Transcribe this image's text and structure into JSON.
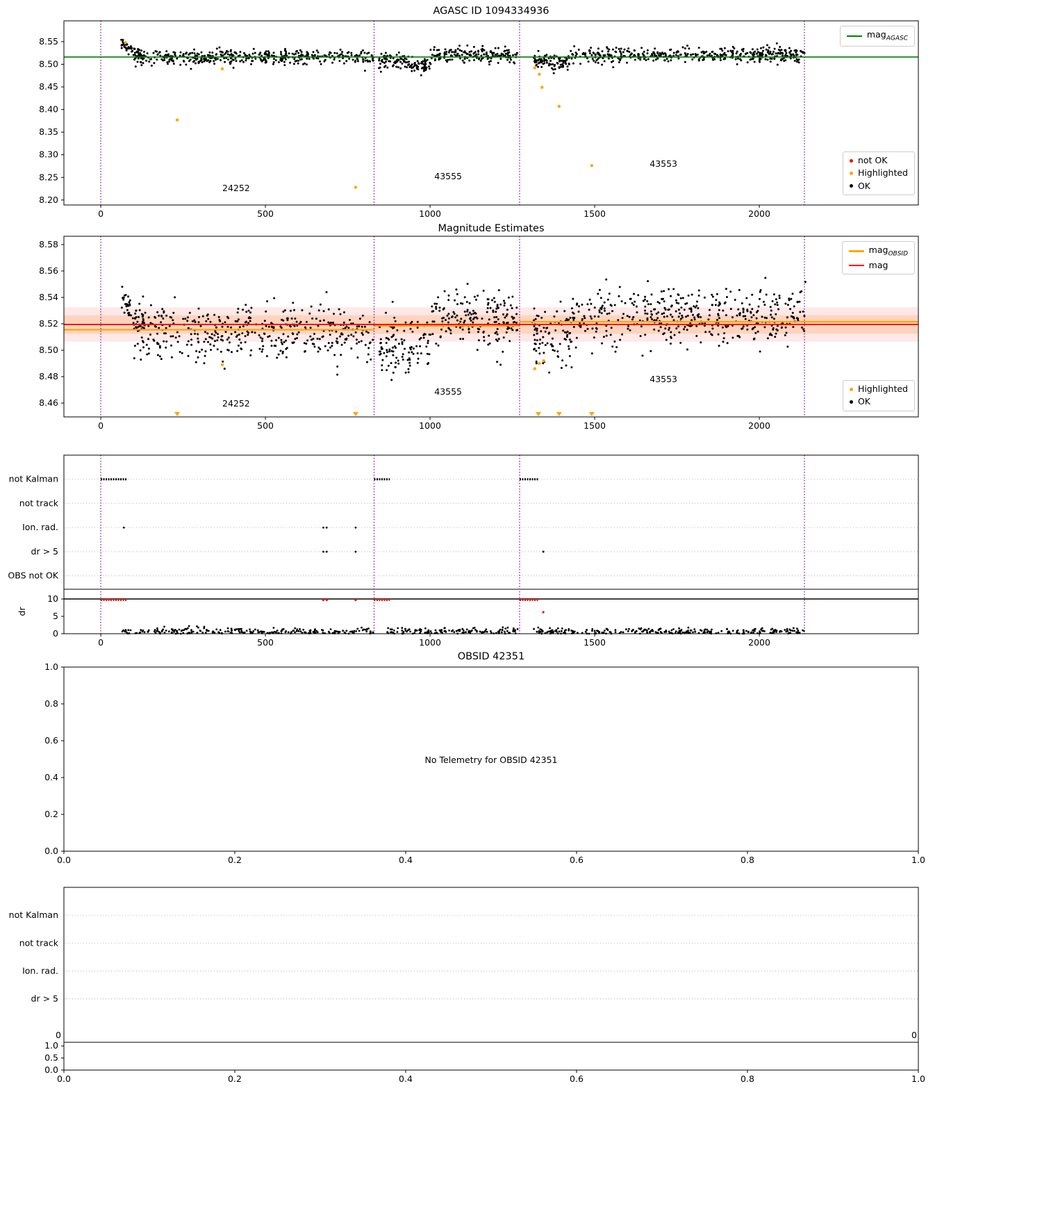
{
  "figure": {
    "background": "#ffffff"
  },
  "colors": {
    "ok_black": "#000000",
    "not_ok_red": "#ff0000",
    "highlighted_orange": "#ffa500",
    "mag_agasc_green": "#008000",
    "obsid_boundary_purple": "#800080"
  },
  "chart_data": [
    {
      "id": "agasc_mag",
      "type": "scatter",
      "title": "AGASC ID 1094334936",
      "xlim": [
        -112,
        2483
      ],
      "ylim": [
        8.189,
        8.596
      ],
      "xticks": [
        0,
        500,
        1000,
        1500,
        2000
      ],
      "xtick_labels": [
        "0",
        "500",
        "1000",
        "1500",
        "2000"
      ],
      "yticks": [
        8.2,
        8.25,
        8.3,
        8.35,
        8.4,
        8.45,
        8.5,
        8.55
      ],
      "ytick_labels": [
        "8.20",
        "8.25",
        "8.30",
        "8.35",
        "8.40",
        "8.45",
        "8.50",
        "8.55"
      ],
      "vlines": [
        0,
        830,
        1272,
        2137
      ],
      "vline_color": "#800080",
      "hlines": [
        {
          "y": 8.516,
          "color": "#008000",
          "width": 1.6
        }
      ],
      "obsid_labels": [
        {
          "text": "24252",
          "x": 411,
          "y": 8.22
        },
        {
          "text": "43555",
          "x": 1055,
          "y": 8.246
        },
        {
          "text": "43553",
          "x": 1709,
          "y": 8.2735
        }
      ],
      "clusters": [
        {
          "x0": 62,
          "x1": 130,
          "n": 60,
          "trend": [
            8.547,
            8.513
          ],
          "std": 0.006,
          "seed": 101
        },
        {
          "x0": 100,
          "x1": 828,
          "n": 420,
          "mean": 8.515,
          "std": 0.008,
          "seed": 102
        },
        {
          "x0": 845,
          "x1": 935,
          "n": 70,
          "mean": 8.508,
          "std": 0.009,
          "seed": 103
        },
        {
          "x0": 935,
          "x1": 1000,
          "n": 55,
          "mean": 8.497,
          "std": 0.007,
          "seed": 104
        },
        {
          "x0": 1000,
          "x1": 1268,
          "n": 170,
          "mean": 8.52,
          "std": 0.008,
          "seed": 105
        },
        {
          "x0": 1310,
          "x1": 1430,
          "n": 90,
          "mean": 8.507,
          "std": 0.009,
          "seed": 106
        },
        {
          "x0": 1430,
          "x1": 2140,
          "n": 430,
          "mean": 8.521,
          "std": 0.009,
          "seed": 107
        }
      ],
      "highlight_color": "#ffa500",
      "highlight_points": [
        {
          "x": 75,
          "y": 8.548
        },
        {
          "x": 232,
          "y": 8.377
        },
        {
          "x": 369,
          "y": 8.49
        },
        {
          "x": 774,
          "y": 8.228
        },
        {
          "x": 1318,
          "y": 8.492
        },
        {
          "x": 1332,
          "y": 8.478
        },
        {
          "x": 1340,
          "y": 8.449
        },
        {
          "x": 1392,
          "y": 8.407
        },
        {
          "x": 1491,
          "y": 8.276
        }
      ],
      "legend_top": {
        "items": [
          {
            "label": "mag",
            "sub": "AGASC",
            "color": "#008000"
          }
        ]
      },
      "legend_bottom": {
        "items": [
          {
            "label": "not OK",
            "color": "#ff0000"
          },
          {
            "label": "Highlighted",
            "color": "#ffa500"
          },
          {
            "label": "OK",
            "color": "#000000"
          }
        ]
      }
    },
    {
      "id": "magnitude_estimates",
      "type": "scatter",
      "title": "Magnitude Estimates",
      "xlim": [
        -112,
        2483
      ],
      "ylim": [
        8.4495,
        8.5863
      ],
      "xticks": [
        0,
        500,
        1000,
        1500,
        2000
      ],
      "xtick_labels": [
        "0",
        "500",
        "1000",
        "1500",
        "2000"
      ],
      "yticks": [
        8.46,
        8.48,
        8.5,
        8.52,
        8.54,
        8.56,
        8.58
      ],
      "ytick_labels": [
        "8.46",
        "8.48",
        "8.50",
        "8.52",
        "8.54",
        "8.56",
        "8.58"
      ],
      "vlines": [
        0,
        830,
        1272,
        2137
      ],
      "vline_color": "#800080",
      "bands": [
        {
          "y0": 8.5065,
          "y1": 8.5325,
          "color": "#ff8080",
          "opacity": 0.18
        },
        {
          "y0": 8.5125,
          "y1": 8.5265,
          "color": "#ffb070",
          "opacity": 0.35
        }
      ],
      "hsegments": [
        {
          "x0": -112,
          "x1": 830,
          "y": 8.5155,
          "color": "#ffa500",
          "width": 2.2
        },
        {
          "x0": 830,
          "x1": 1272,
          "y": 8.5185,
          "color": "#ffa500",
          "width": 2.2
        },
        {
          "x0": 1272,
          "x1": 2483,
          "y": 8.5215,
          "color": "#ffa500",
          "width": 2.2
        }
      ],
      "hlines": [
        {
          "y": 8.5195,
          "color": "#ff0000",
          "width": 1.8
        }
      ],
      "obsid_labels": [
        {
          "text": "24252",
          "x": 411,
          "y": 8.4574
        },
        {
          "text": "43555",
          "x": 1055,
          "y": 8.4663
        },
        {
          "text": "43553",
          "x": 1709,
          "y": 8.4758
        }
      ],
      "clusters": [
        {
          "x0": 62,
          "x1": 130,
          "n": 55,
          "trend": [
            8.546,
            8.514
          ],
          "std": 0.007,
          "seed": 201
        },
        {
          "x0": 100,
          "x1": 828,
          "n": 420,
          "mean": 8.513,
          "std": 0.01,
          "seed": 202
        },
        {
          "x0": 845,
          "x1": 1000,
          "n": 110,
          "mean": 8.501,
          "std": 0.011,
          "seed": 203
        },
        {
          "x0": 1000,
          "x1": 1268,
          "n": 190,
          "mean": 8.524,
          "std": 0.011,
          "seed": 204
        },
        {
          "x0": 1310,
          "x1": 1430,
          "n": 95,
          "mean": 8.509,
          "std": 0.011,
          "seed": 205
        },
        {
          "x0": 1430,
          "x1": 2140,
          "n": 440,
          "mean": 8.526,
          "std": 0.011,
          "seed": 206
        }
      ],
      "highlight_color": "#ffa500",
      "highlight_points": [
        {
          "x": 369,
          "y": 8.489
        },
        {
          "x": 1318,
          "y": 8.486
        },
        {
          "x": 1332,
          "y": 8.49
        },
        {
          "x": 1345,
          "y": 8.492
        }
      ],
      "bottom_markers": [
        232,
        774,
        1329,
        1392,
        1491
      ],
      "legend_top": {
        "items": [
          {
            "label": "mag",
            "sub": "OBSID",
            "color": "#ffa500"
          },
          {
            "label": "mag",
            "color": "#ff0000"
          }
        ]
      },
      "legend_bottom": {
        "items": [
          {
            "label": "Highlighted",
            "color": "#ffa500"
          },
          {
            "label": "OK",
            "color": "#000000"
          }
        ]
      }
    },
    {
      "id": "telemetry_flags",
      "type": "flags",
      "categories": [
        "not Kalman",
        "not track",
        "Ion. rad.",
        "dr > 5",
        "OBS not OK"
      ],
      "xlim": [
        -112,
        2483
      ],
      "xticks": [
        0,
        500,
        1000,
        1500,
        2000
      ],
      "xtick_labels": [
        "0",
        "500",
        "1000",
        "1500",
        "2000"
      ],
      "vlines": [
        0,
        830,
        1272,
        2137
      ],
      "vline_color": "#800080",
      "flag_runs": [
        {
          "row": 0,
          "x0": 0,
          "x1": 80
        },
        {
          "row": 0,
          "x0": 830,
          "x1": 878
        },
        {
          "row": 0,
          "x0": 1272,
          "x1": 1328
        }
      ],
      "flag_points": [
        {
          "row": 2,
          "x": 70
        },
        {
          "row": 2,
          "x": 676
        },
        {
          "row": 2,
          "x": 686
        },
        {
          "row": 2,
          "x": 774
        },
        {
          "row": 3,
          "x": 676
        },
        {
          "row": 3,
          "x": 686
        },
        {
          "row": 3,
          "x": 774
        },
        {
          "row": 3,
          "x": 1344
        }
      ],
      "dr": {
        "ylabel": "dr",
        "ylim": [
          0,
          12.8
        ],
        "yticks": [
          10,
          5,
          0
        ],
        "ytick_labels": [
          "10",
          "5",
          "0"
        ],
        "hline": 10,
        "flag_color": "#ff0000",
        "red_runs": [
          {
            "x0": 0,
            "x1": 80,
            "y": 9.7
          },
          {
            "x0": 830,
            "x1": 878,
            "y": 9.7
          },
          {
            "x0": 1272,
            "x1": 1328,
            "y": 9.7
          }
        ],
        "red_points": [
          {
            "x": 676,
            "y": 9.7
          },
          {
            "x": 686,
            "y": 9.7
          },
          {
            "x": 774,
            "y": 9.7
          },
          {
            "x": 1344,
            "y": 6.2
          }
        ],
        "scatter": [
          {
            "x0": 62,
            "x1": 828,
            "n": 240,
            "mean": 0.6,
            "std": 0.5,
            "seed": 301
          },
          {
            "x0": 870,
            "x1": 1268,
            "n": 130,
            "mean": 0.7,
            "std": 0.55,
            "seed": 302
          },
          {
            "x0": 1310,
            "x1": 2140,
            "n": 260,
            "mean": 0.6,
            "std": 0.5,
            "seed": 303
          }
        ]
      }
    },
    {
      "id": "obsid_42351",
      "type": "empty",
      "title": "OBSID 42351",
      "center_text": "No Telemetry for OBSID 42351",
      "xlim": [
        0,
        1
      ],
      "ylim": [
        0,
        1
      ],
      "xticks": [
        0,
        0.2,
        0.4,
        0.6,
        0.8,
        1
      ],
      "xtick_labels": [
        "0.0",
        "0.2",
        "0.4",
        "0.6",
        "0.8",
        "1.0"
      ],
      "yticks": [
        0,
        0.2,
        0.4,
        0.6,
        0.8,
        1
      ],
      "ytick_labels": [
        "0.0",
        "0.2",
        "0.4",
        "0.6",
        "0.8",
        "1.0"
      ]
    },
    {
      "id": "obsid_flags_empty",
      "type": "flags",
      "categories": [
        "not Kalman",
        "not track",
        "Ion. rad.",
        "dr > 5"
      ],
      "xlim": [
        0,
        1
      ],
      "xticks": [
        0,
        0.2,
        0.4,
        0.6,
        0.8,
        1
      ],
      "xtick_labels": [
        "0.0",
        "0.2",
        "0.4",
        "0.6",
        "0.8",
        "1.0"
      ],
      "dr": {
        "ylim": [
          0,
          1.15
        ],
        "yticks": [
          1.0,
          0.5,
          0.0
        ],
        "ytick_labels": [
          "1.0",
          "0.5",
          "0.0"
        ],
        "corner_labels": [
          "0",
          "0"
        ]
      }
    }
  ]
}
